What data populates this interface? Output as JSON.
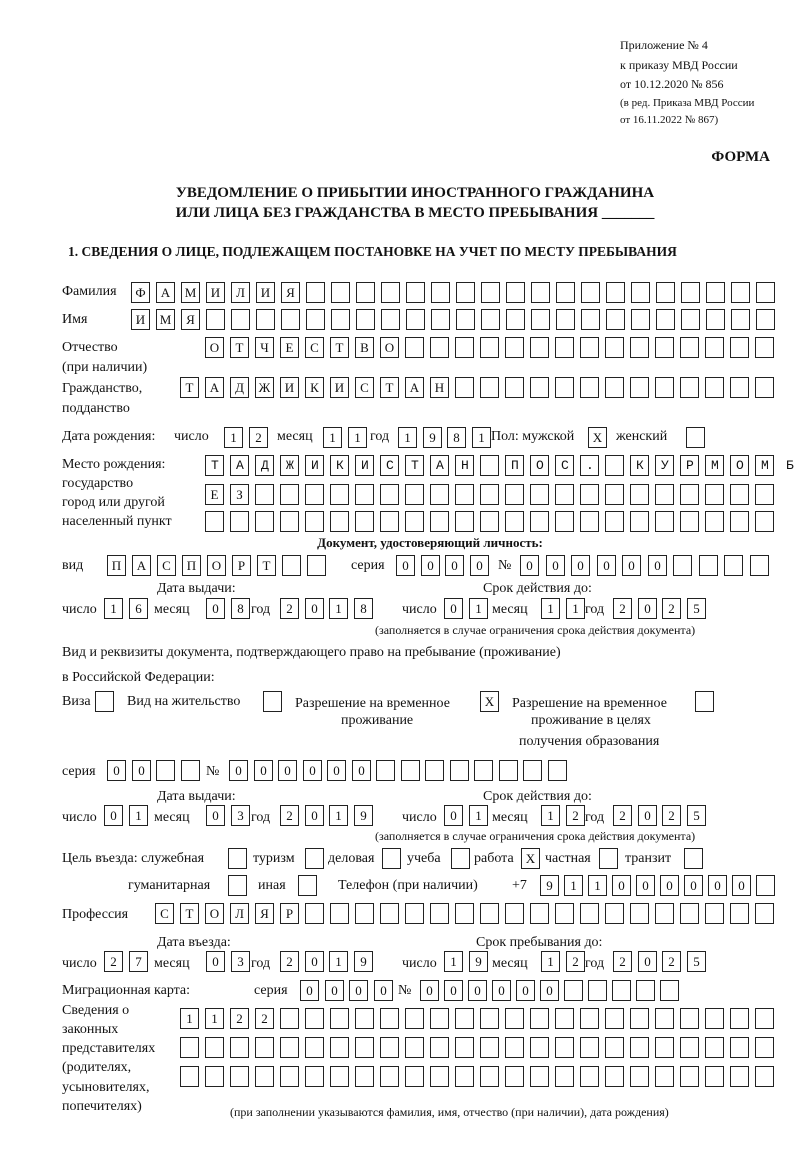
{
  "header": {
    "appendix": "Приложение № 4",
    "order": "к приказу МВД России",
    "order_date": "от 10.12.2020 № 856",
    "amend1": "(в ред. Приказа МВД России",
    "amend2": "от 16.11.2022 № 867)",
    "form_label": "ФОРМА",
    "title1": "УВЕДОМЛЕНИЕ О ПРИБЫТИИ ИНОСТРАННОГО ГРАЖДАНИНА",
    "title2": "ИЛИ ЛИЦА БЕЗ ГРАЖДАНСТВА В МЕСТО ПРЕБЫВАНИЯ _______",
    "section1": "1. СВЕДЕНИЯ О ЛИЦЕ, ПОДЛЕЖАЩЕМ ПОСТАНОВКЕ НА УЧЕТ ПО МЕСТУ ПРЕБЫВАНИЯ"
  },
  "labels": {
    "surname": "Фамилия",
    "name": "Имя",
    "patronymic": "Отчество",
    "patronymic2": "(при наличии)",
    "citizenship": "Гражданство,",
    "citizenship2": "подданство",
    "birth_date": "Дата рождения:",
    "day": "число",
    "month": "месяц",
    "year": "год",
    "sex": "Пол: мужской",
    "female": "женский",
    "birth_place": "Место рождения:",
    "bp2": "государство",
    "bp3": "город или другой",
    "bp4": "населенный пункт",
    "id_doc": "Документ, удостоверяющий личность:",
    "kind": "вид",
    "series": "серия",
    "number": "№",
    "issue_date": "Дата выдачи:",
    "valid_until": "Срок действия до:",
    "validity_note": "(заполняется в случае ограничения срока действия документа)",
    "right_doc1": "Вид и реквизиты документа, подтверждающего право на пребывание (проживание)",
    "right_doc2": "в Российской Федерации:",
    "visa": "Виза",
    "residence": "Вид на жительство",
    "temp1": "Разрешение на временное",
    "temp2": "проживание",
    "edu1": "Разрешение на временное",
    "edu2": "проживание в целях",
    "edu3": "получения образования",
    "purpose": "Цель въезда: служебная",
    "tourism": "туризм",
    "business": "деловая",
    "study": "учеба",
    "work": "работа",
    "private": "частная",
    "transit": "транзит",
    "humanitarian": "гуманитарная",
    "other": "иная",
    "phone": "Телефон (при наличии)",
    "phone_prefix": "+7",
    "profession": "Профессия",
    "entry_date": "Дата въезда:",
    "stay_until": "Срок пребывания до:",
    "migration_card": "Миграционная карта:",
    "reps1": "Сведения о",
    "reps2": "законных",
    "reps3": "представителях",
    "reps4": "(родителях,",
    "reps5": "усыновителях,",
    "reps6": "попечителях)",
    "reps_note": "(при заполнении указываются фамилия, имя, отчество (при наличии), дата рождения)"
  },
  "fields": {
    "surname": "ФАМИЛИЯ",
    "name": "ИМЯ",
    "patronymic": "ОТЧЕСТВО",
    "citizenship": "ТАДЖИКИСТАН",
    "birth_day": "12",
    "birth_month": "11",
    "birth_year": "1981",
    "sex_male": "X",
    "sex_female": "",
    "birth_place_1": "ТАДЖИКИСТАН ПОС. КУРМОМБ",
    "birth_place_2": "ЕЗ",
    "birth_place_3": "",
    "id_kind": "ПАСПОРТ",
    "id_series": "0000",
    "id_number": "000000",
    "id_issue_day": "16",
    "id_issue_month": "08",
    "id_issue_year": "2018",
    "id_valid_day": "01",
    "id_valid_month": "11",
    "id_valid_year": "2025",
    "visa": "",
    "residence": "",
    "temp_residence": "X",
    "temp_residence_edu": "",
    "rp_series": "00",
    "rp_number": "000000",
    "rp_issue_day": "01",
    "rp_issue_month": "03",
    "rp_issue_year": "2019",
    "rp_valid_day": "01",
    "rp_valid_month": "12",
    "rp_valid_year": "2025",
    "purpose_service": "",
    "purpose_tourism": "",
    "purpose_business": "",
    "purpose_study": "",
    "purpose_work": "X",
    "purpose_private": "",
    "purpose_transit": "",
    "purpose_humanitarian": "",
    "purpose_other": "",
    "phone": "911000000",
    "profession": "СТОЛЯР",
    "entry_day": "27",
    "entry_month": "03",
    "entry_year": "2019",
    "stay_day": "19",
    "stay_month": "12",
    "stay_year": "2025",
    "mc_series": "0000",
    "mc_number": "000000",
    "reps_1": "1122",
    "reps_2": "",
    "reps_3": ""
  }
}
